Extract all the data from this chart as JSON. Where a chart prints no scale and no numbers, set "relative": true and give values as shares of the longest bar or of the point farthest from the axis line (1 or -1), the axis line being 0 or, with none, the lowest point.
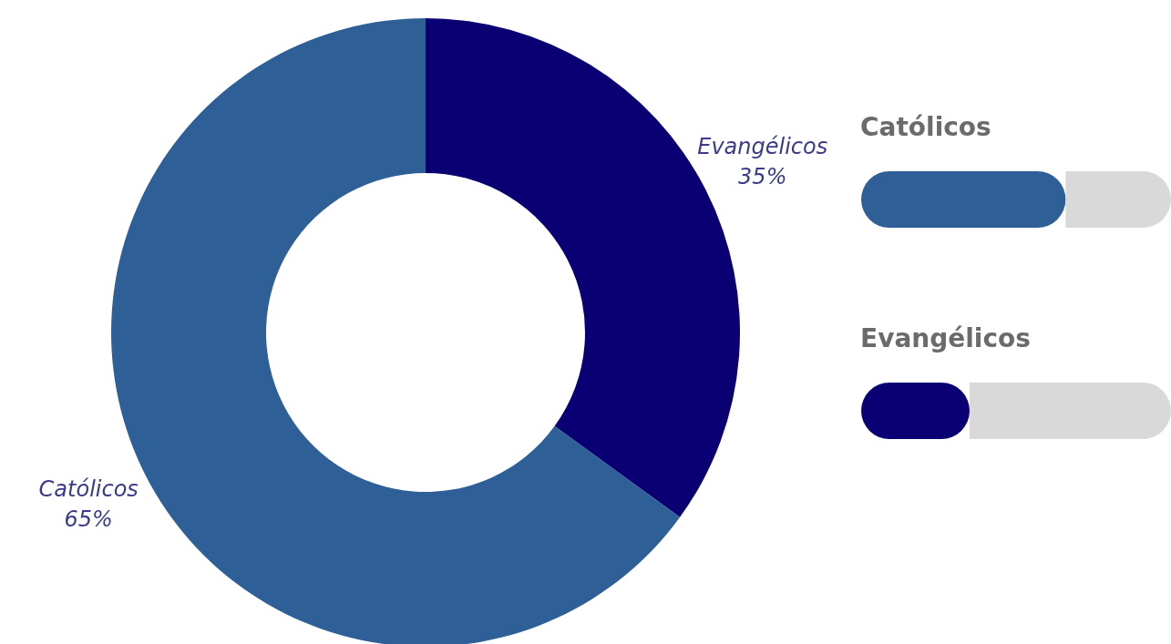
{
  "chart_data": [
    {
      "type": "donut",
      "categories": [
        "Evangélicos",
        "Católicos"
      ],
      "values": [
        35,
        65
      ],
      "colors": [
        "#0b0073",
        "#2e5f96"
      ],
      "value_labels": [
        "35%",
        "65%"
      ]
    },
    {
      "type": "bar",
      "orientation": "horizontal",
      "stacked": true,
      "relative": true,
      "categories": [
        "Católicos",
        "Evangélicos"
      ],
      "series": [
        {
          "colors": [
            "#2e5f96",
            "#0b0073"
          ],
          "values": [
            0.66,
            0.35
          ]
        },
        {
          "color": "#d9d9d9",
          "values": [
            0.34,
            0.65
          ]
        }
      ]
    }
  ]
}
